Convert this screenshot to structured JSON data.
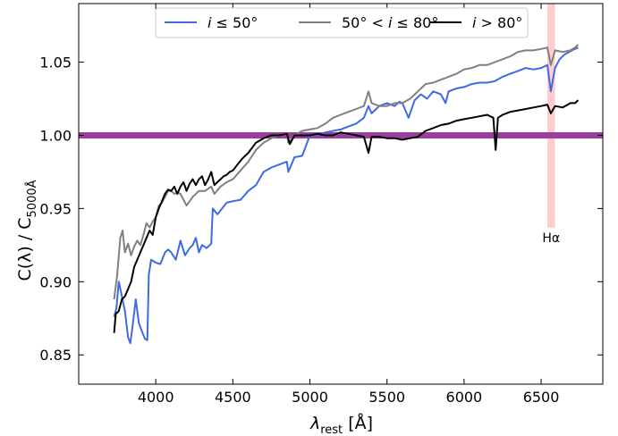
{
  "chart_data": {
    "type": "line",
    "xlabel": "λ_rest [Å]",
    "ylabel": "C(λ) / C_5000Å",
    "xlim": [
      3500,
      6900
    ],
    "ylim": [
      0.83,
      1.09
    ],
    "xticks": [
      4000,
      4500,
      5000,
      5500,
      6000,
      6500
    ],
    "yticks": [
      0.85,
      0.9,
      0.95,
      1.0,
      1.05
    ],
    "grid": false,
    "legend_position": "top-center",
    "reference_line": {
      "y": 1.0,
      "color": "#9b3f9e"
    },
    "highlight_band": {
      "x_range": [
        6540,
        6590
      ],
      "label": "Hα",
      "color": "#ffbcbc"
    },
    "series": [
      {
        "name": "i ≤ 50°",
        "color": "#4169e1",
        "points": [
          [
            3730,
            0.876
          ],
          [
            3745,
            0.882
          ],
          [
            3760,
            0.9
          ],
          [
            3780,
            0.89
          ],
          [
            3800,
            0.88
          ],
          [
            3820,
            0.862
          ],
          [
            3835,
            0.858
          ],
          [
            3850,
            0.87
          ],
          [
            3870,
            0.888
          ],
          [
            3890,
            0.872
          ],
          [
            3910,
            0.866
          ],
          [
            3930,
            0.861
          ],
          [
            3945,
            0.86
          ],
          [
            3955,
            0.905
          ],
          [
            3970,
            0.915
          ],
          [
            4000,
            0.913
          ],
          [
            4030,
            0.912
          ],
          [
            4060,
            0.92
          ],
          [
            4080,
            0.922
          ],
          [
            4100,
            0.92
          ],
          [
            4130,
            0.915
          ],
          [
            4160,
            0.928
          ],
          [
            4190,
            0.918
          ],
          [
            4220,
            0.923
          ],
          [
            4240,
            0.925
          ],
          [
            4260,
            0.93
          ],
          [
            4280,
            0.92
          ],
          [
            4300,
            0.925
          ],
          [
            4330,
            0.923
          ],
          [
            4360,
            0.926
          ],
          [
            4370,
            0.95
          ],
          [
            4400,
            0.946
          ],
          [
            4430,
            0.95
          ],
          [
            4460,
            0.954
          ],
          [
            4500,
            0.955
          ],
          [
            4550,
            0.956
          ],
          [
            4600,
            0.962
          ],
          [
            4650,
            0.966
          ],
          [
            4700,
            0.975
          ],
          [
            4750,
            0.978
          ],
          [
            4800,
            0.98
          ],
          [
            4850,
            0.982
          ],
          [
            4860,
            0.975
          ],
          [
            4900,
            0.985
          ],
          [
            4950,
            0.986
          ],
          [
            5000,
            1.0
          ],
          [
            5050,
            1.0
          ],
          [
            5100,
            1.002
          ],
          [
            5150,
            1.003
          ],
          [
            5200,
            1.004
          ],
          [
            5250,
            1.006
          ],
          [
            5300,
            1.008
          ],
          [
            5350,
            1.012
          ],
          [
            5380,
            1.02
          ],
          [
            5400,
            1.015
          ],
          [
            5450,
            1.02
          ],
          [
            5500,
            1.022
          ],
          [
            5550,
            1.02
          ],
          [
            5580,
            1.023
          ],
          [
            5600,
            1.022
          ],
          [
            5640,
            1.012
          ],
          [
            5680,
            1.024
          ],
          [
            5720,
            1.028
          ],
          [
            5760,
            1.025
          ],
          [
            5800,
            1.03
          ],
          [
            5850,
            1.028
          ],
          [
            5880,
            1.022
          ],
          [
            5900,
            1.03
          ],
          [
            5950,
            1.032
          ],
          [
            6000,
            1.033
          ],
          [
            6050,
            1.035
          ],
          [
            6100,
            1.036
          ],
          [
            6150,
            1.036
          ],
          [
            6200,
            1.037
          ],
          [
            6250,
            1.04
          ],
          [
            6300,
            1.042
          ],
          [
            6350,
            1.044
          ],
          [
            6400,
            1.046
          ],
          [
            6450,
            1.045
          ],
          [
            6500,
            1.046
          ],
          [
            6540,
            1.048
          ],
          [
            6563,
            1.03
          ],
          [
            6590,
            1.046
          ],
          [
            6620,
            1.052
          ],
          [
            6650,
            1.055
          ],
          [
            6700,
            1.058
          ],
          [
            6740,
            1.06
          ]
        ]
      },
      {
        "name": "50° < i ≤ 80°",
        "color": "#808080",
        "points": [
          [
            3730,
            0.888
          ],
          [
            3750,
            0.905
          ],
          [
            3770,
            0.93
          ],
          [
            3785,
            0.935
          ],
          [
            3800,
            0.92
          ],
          [
            3820,
            0.926
          ],
          [
            3840,
            0.918
          ],
          [
            3860,
            0.924
          ],
          [
            3880,
            0.928
          ],
          [
            3900,
            0.925
          ],
          [
            3920,
            0.932
          ],
          [
            3940,
            0.94
          ],
          [
            3960,
            0.937
          ],
          [
            3980,
            0.941
          ],
          [
            4000,
            0.944
          ],
          [
            4020,
            0.952
          ],
          [
            4040,
            0.954
          ],
          [
            4060,
            0.958
          ],
          [
            4080,
            0.962
          ],
          [
            4100,
            0.962
          ],
          [
            4120,
            0.96
          ],
          [
            4140,
            0.961
          ],
          [
            4160,
            0.96
          ],
          [
            4200,
            0.952
          ],
          [
            4240,
            0.958
          ],
          [
            4280,
            0.962
          ],
          [
            4320,
            0.962
          ],
          [
            4360,
            0.965
          ],
          [
            4380,
            0.96
          ],
          [
            4420,
            0.965
          ],
          [
            4460,
            0.968
          ],
          [
            4500,
            0.97
          ],
          [
            4550,
            0.976
          ],
          [
            4600,
            0.982
          ],
          [
            4650,
            0.99
          ],
          [
            4700,
            0.995
          ],
          [
            4750,
            0.998
          ],
          [
            4800,
            1.0
          ],
          [
            4850,
            1.001
          ],
          [
            4860,
            0.995
          ],
          [
            4900,
            1.0
          ],
          [
            4950,
            1.003
          ],
          [
            5000,
            1.004
          ],
          [
            5050,
            1.005
          ],
          [
            5100,
            1.008
          ],
          [
            5150,
            1.012
          ],
          [
            5200,
            1.014
          ],
          [
            5250,
            1.016
          ],
          [
            5300,
            1.018
          ],
          [
            5350,
            1.02
          ],
          [
            5380,
            1.03
          ],
          [
            5400,
            1.022
          ],
          [
            5450,
            1.02
          ],
          [
            5500,
            1.02
          ],
          [
            5550,
            1.022
          ],
          [
            5600,
            1.022
          ],
          [
            5650,
            1.025
          ],
          [
            5700,
            1.03
          ],
          [
            5750,
            1.035
          ],
          [
            5800,
            1.036
          ],
          [
            5850,
            1.038
          ],
          [
            5900,
            1.04
          ],
          [
            5950,
            1.042
          ],
          [
            6000,
            1.045
          ],
          [
            6050,
            1.046
          ],
          [
            6100,
            1.048
          ],
          [
            6150,
            1.048
          ],
          [
            6200,
            1.05
          ],
          [
            6250,
            1.052
          ],
          [
            6300,
            1.054
          ],
          [
            6350,
            1.057
          ],
          [
            6400,
            1.058
          ],
          [
            6450,
            1.058
          ],
          [
            6500,
            1.059
          ],
          [
            6540,
            1.06
          ],
          [
            6563,
            1.048
          ],
          [
            6590,
            1.058
          ],
          [
            6640,
            1.057
          ],
          [
            6690,
            1.058
          ],
          [
            6720,
            1.06
          ],
          [
            6740,
            1.062
          ]
        ]
      },
      {
        "name": "i > 80°",
        "color": "#000000",
        "points": [
          [
            3730,
            0.865
          ],
          [
            3740,
            0.878
          ],
          [
            3760,
            0.88
          ],
          [
            3780,
            0.888
          ],
          [
            3800,
            0.89
          ],
          [
            3820,
            0.895
          ],
          [
            3840,
            0.9
          ],
          [
            3860,
            0.91
          ],
          [
            3880,
            0.915
          ],
          [
            3900,
            0.92
          ],
          [
            3920,
            0.925
          ],
          [
            3940,
            0.93
          ],
          [
            3960,
            0.935
          ],
          [
            3980,
            0.932
          ],
          [
            4000,
            0.944
          ],
          [
            4020,
            0.95
          ],
          [
            4040,
            0.955
          ],
          [
            4060,
            0.96
          ],
          [
            4080,
            0.963
          ],
          [
            4100,
            0.962
          ],
          [
            4120,
            0.965
          ],
          [
            4140,
            0.96
          ],
          [
            4160,
            0.965
          ],
          [
            4180,
            0.968
          ],
          [
            4200,
            0.962
          ],
          [
            4220,
            0.967
          ],
          [
            4240,
            0.97
          ],
          [
            4260,
            0.966
          ],
          [
            4280,
            0.97
          ],
          [
            4300,
            0.972
          ],
          [
            4320,
            0.966
          ],
          [
            4340,
            0.97
          ],
          [
            4360,
            0.975
          ],
          [
            4380,
            0.966
          ],
          [
            4400,
            0.968
          ],
          [
            4420,
            0.97
          ],
          [
            4440,
            0.972
          ],
          [
            4460,
            0.973
          ],
          [
            4480,
            0.975
          ],
          [
            4500,
            0.976
          ],
          [
            4530,
            0.98
          ],
          [
            4560,
            0.984
          ],
          [
            4600,
            0.988
          ],
          [
            4650,
            0.995
          ],
          [
            4700,
            0.998
          ],
          [
            4750,
            1.0
          ],
          [
            4800,
            1.0
          ],
          [
            4850,
            1.001
          ],
          [
            4870,
            0.994
          ],
          [
            4900,
            1.0
          ],
          [
            4950,
            1.0
          ],
          [
            5000,
            1.0
          ],
          [
            5050,
            1.001
          ],
          [
            5100,
            1.0
          ],
          [
            5150,
            1.0
          ],
          [
            5200,
            1.002
          ],
          [
            5250,
            1.001
          ],
          [
            5300,
            1.0
          ],
          [
            5350,
            0.999
          ],
          [
            5380,
            0.988
          ],
          [
            5400,
            0.999
          ],
          [
            5450,
            0.999
          ],
          [
            5500,
            0.998
          ],
          [
            5550,
            0.998
          ],
          [
            5600,
            0.997
          ],
          [
            5650,
            0.998
          ],
          [
            5700,
            0.999
          ],
          [
            5750,
            1.003
          ],
          [
            5800,
            1.005
          ],
          [
            5850,
            1.007
          ],
          [
            5900,
            1.008
          ],
          [
            5950,
            1.01
          ],
          [
            6000,
            1.011
          ],
          [
            6050,
            1.012
          ],
          [
            6100,
            1.013
          ],
          [
            6150,
            1.014
          ],
          [
            6190,
            1.012
          ],
          [
            6205,
            0.99
          ],
          [
            6220,
            1.012
          ],
          [
            6250,
            1.014
          ],
          [
            6300,
            1.016
          ],
          [
            6350,
            1.017
          ],
          [
            6400,
            1.018
          ],
          [
            6450,
            1.019
          ],
          [
            6500,
            1.02
          ],
          [
            6540,
            1.021
          ],
          [
            6563,
            1.015
          ],
          [
            6590,
            1.02
          ],
          [
            6640,
            1.019
          ],
          [
            6690,
            1.022
          ],
          [
            6720,
            1.022
          ],
          [
            6740,
            1.024
          ]
        ]
      }
    ]
  },
  "legend": {
    "items": [
      {
        "label_math": "i",
        "label_rest": "≤ 50°",
        "color": "#4169e1"
      },
      {
        "label_math": "i",
        "label_prefix": "50° <",
        "label_rest": "≤ 80°",
        "color": "#808080"
      },
      {
        "label_math": "i",
        "label_rest": "> 80°",
        "color": "#000000"
      }
    ]
  },
  "annotations": {
    "halpha": "Hα"
  },
  "axes": {
    "ylabel_main": "C(λ) / C",
    "ylabel_sub": "5000Å",
    "xlabel_main": "λ",
    "xlabel_sub": "rest",
    "xlabel_unit": " [Å]"
  }
}
